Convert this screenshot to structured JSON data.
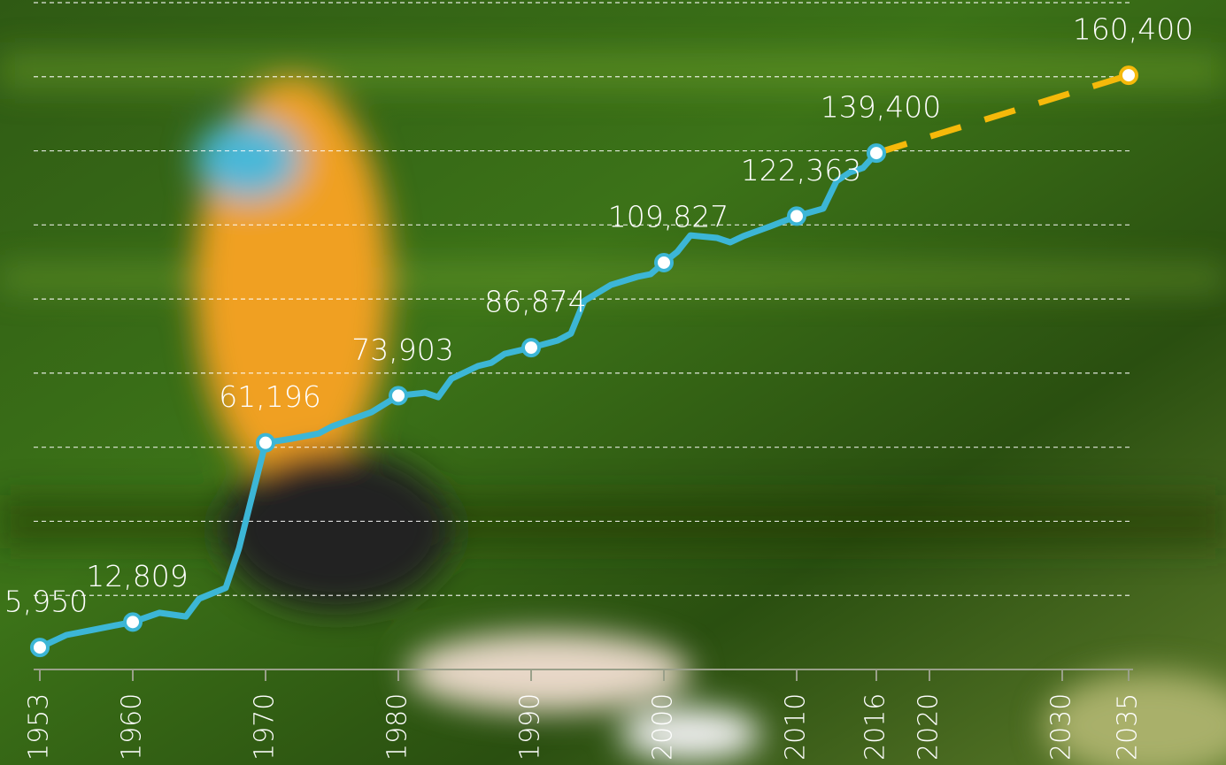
{
  "chart_data": {
    "type": "line",
    "xlim": [
      1953,
      2035
    ],
    "xticks": [
      1953,
      1960,
      1970,
      1980,
      1990,
      2000,
      2010,
      2016,
      2020,
      2030,
      2035
    ],
    "ylim": [
      0,
      180000
    ],
    "yticks": [
      0,
      20000,
      40000,
      60000,
      80000,
      100000,
      120000,
      140000,
      160000,
      180000
    ],
    "grid": true,
    "series": [
      {
        "color": "#3cb6d6",
        "dashed": false,
        "x": [
          1953,
          1955,
          1957,
          1960,
          1962,
          1964,
          1965,
          1967,
          1968,
          1969,
          1970,
          1972,
          1974,
          1975,
          1978,
          1980,
          1982,
          1983,
          1984,
          1986,
          1987,
          1988,
          1990,
          1992,
          1993,
          1994,
          1996,
          1998,
          1999,
          2000,
          2001,
          2002,
          2004,
          2005,
          2006,
          2008,
          2010,
          2011,
          2012,
          2013,
          2014,
          2015,
          2016
        ],
        "values": [
          5950,
          9300,
          10700,
          12809,
          15300,
          14300,
          19100,
          22000,
          32700,
          47000,
          61196,
          62300,
          63700,
          65600,
          69500,
          73903,
          74700,
          73500,
          78500,
          81900,
          82800,
          85200,
          86874,
          88800,
          90700,
          99500,
          103800,
          106000,
          106700,
          109827,
          112700,
          117200,
          116500,
          115300,
          117000,
          119600,
          122363,
          123400,
          124400,
          131800,
          134200,
          135400,
          139400
        ],
        "value_labels": [
          "5,950",
          null,
          null,
          "12,809",
          null,
          null,
          null,
          null,
          null,
          null,
          "61,196",
          null,
          null,
          null,
          null,
          "73,903",
          null,
          null,
          null,
          null,
          null,
          null,
          "86,874",
          null,
          null,
          null,
          null,
          null,
          null,
          "109,827",
          null,
          null,
          null,
          null,
          null,
          null,
          "122,363",
          null,
          null,
          null,
          null,
          null,
          "139,400"
        ]
      },
      {
        "color": "#f5b90a",
        "dashed": true,
        "x": [
          2016,
          2035
        ],
        "values": [
          139400,
          160400
        ],
        "value_labels": [
          null,
          "160,400"
        ]
      }
    ]
  }
}
